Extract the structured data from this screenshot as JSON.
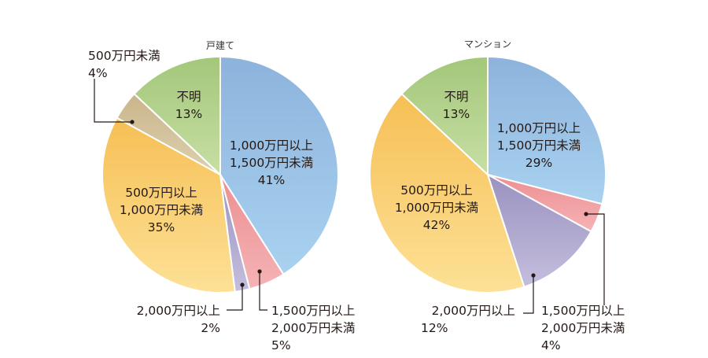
{
  "chart_data": [
    {
      "type": "pie",
      "title": "戸建て",
      "slices": [
        {
          "key": "r1000_1500",
          "lines": [
            "1,000万円以上",
            "1,500万円未満"
          ],
          "value": 41,
          "value_label": "41%",
          "color": "#8db3dc",
          "color_light": "#a9d2f0"
        },
        {
          "key": "r1500_2000",
          "lines": [
            "1,500万円以上",
            "2,000万円未満"
          ],
          "value": 5,
          "value_label": "5%",
          "color": "#ec8f92",
          "color_light": "#f5b3b5"
        },
        {
          "key": "over2000",
          "lines": [
            "2,000万円以上"
          ],
          "value": 2,
          "value_label": "2%",
          "color": "#9a92c0",
          "color_light": "#c4bedd"
        },
        {
          "key": "r500_1000",
          "lines": [
            "500万円以上",
            "1,000万円未満"
          ],
          "value": 35,
          "value_label": "35%",
          "color": "#f6bf55",
          "color_light": "#fde196"
        },
        {
          "key": "under500",
          "lines": [
            "500万円未満"
          ],
          "value": 4,
          "value_label": "4%",
          "color": "#c9b58a",
          "color_light": "#ddd1b0"
        },
        {
          "key": "unknown",
          "lines": [
            "不明"
          ],
          "value": 13,
          "value_label": "13%",
          "color": "#a3c77a",
          "color_light": "#c7dfa4"
        }
      ]
    },
    {
      "type": "pie",
      "title": "マンション",
      "slices": [
        {
          "key": "r1000_1500",
          "lines": [
            "1,000万円以上",
            "1,500万円未満"
          ],
          "value": 29,
          "value_label": "29%",
          "color": "#8db3dc",
          "color_light": "#a9d2f0"
        },
        {
          "key": "r1500_2000",
          "lines": [
            "1,500万円以上",
            "2,000万円未満"
          ],
          "value": 4,
          "value_label": "4%",
          "color": "#ec8f92",
          "color_light": "#f5b3b5"
        },
        {
          "key": "over2000",
          "lines": [
            "2,000万円以上"
          ],
          "value": 12,
          "value_label": "12%",
          "color": "#9a92c0",
          "color_light": "#c4bedd"
        },
        {
          "key": "r500_1000",
          "lines": [
            "500万円以上",
            "1,000万円未満"
          ],
          "value": 42,
          "value_label": "42%",
          "color": "#f6bf55",
          "color_light": "#fde196"
        },
        {
          "key": "unknown",
          "lines": [
            "不明"
          ],
          "value": 13,
          "value_label": "13%",
          "color": "#a3c77a",
          "color_light": "#c7dfa4"
        }
      ]
    }
  ]
}
